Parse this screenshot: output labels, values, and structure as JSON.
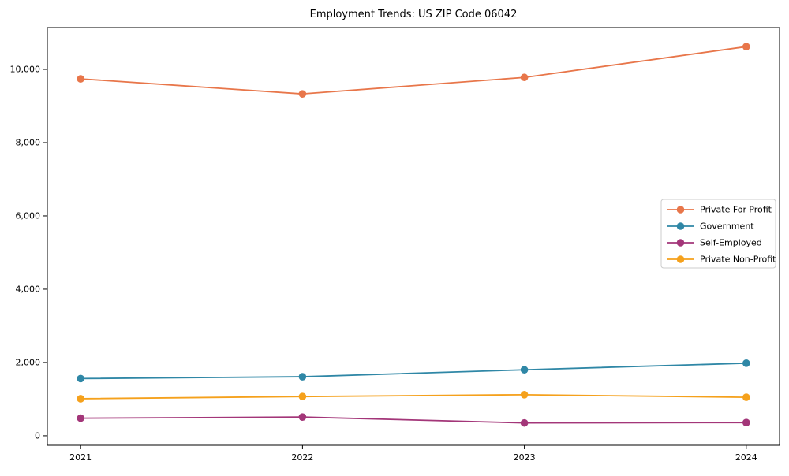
{
  "figure": {
    "background": "#ffffff",
    "border_color": "#000000"
  },
  "chart_data": {
    "type": "line",
    "title": "Employment Trends: US ZIP Code 06042",
    "xlabel": "",
    "ylabel": "",
    "categories": [
      2021,
      2022,
      2023,
      2024
    ],
    "x_tick_labels": [
      "2021",
      "2022",
      "2023",
      "2024"
    ],
    "series": [
      {
        "name": "Private For-Profit",
        "color": "#e8764a",
        "values": [
          9740,
          9330,
          9780,
          10620
        ]
      },
      {
        "name": "Government",
        "color": "#2f87a6",
        "values": [
          1560,
          1610,
          1800,
          1980
        ]
      },
      {
        "name": "Self-Employed",
        "color": "#a33679",
        "values": [
          480,
          510,
          350,
          360
        ]
      },
      {
        "name": "Private Non-Profit",
        "color": "#f5a11c",
        "values": [
          1010,
          1070,
          1120,
          1050
        ]
      }
    ],
    "y_ticks": [
      {
        "value": 0,
        "label": "0"
      },
      {
        "value": 2000,
        "label": "2,000"
      },
      {
        "value": 4000,
        "label": "4,000"
      },
      {
        "value": 6000,
        "label": "6,000"
      },
      {
        "value": 8000,
        "label": "8,000"
      },
      {
        "value": 10000,
        "label": "10,000"
      }
    ],
    "xlim": [
      2020.85,
      2024.15
    ],
    "ylim": [
      -260,
      11140
    ],
    "grid": false,
    "marker": "circle",
    "legend": {
      "position": "center-right",
      "entries": [
        "Private For-Profit",
        "Government",
        "Self-Employed",
        "Private Non-Profit"
      ]
    }
  }
}
